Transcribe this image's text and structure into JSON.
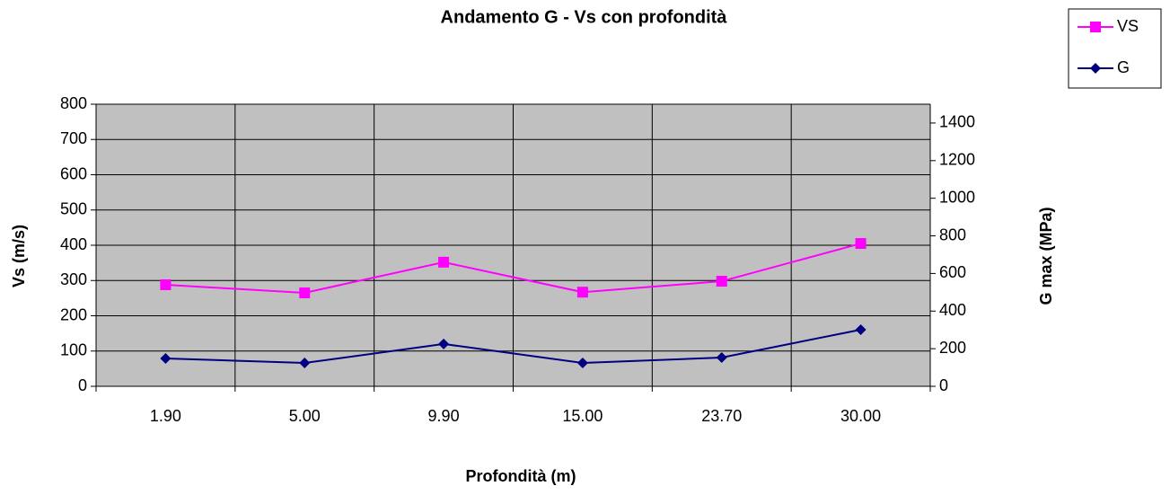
{
  "chart_data": {
    "type": "line",
    "title": "Andamento G - Vs con profondità",
    "xlabel": "Profondità (m)",
    "ylabel": "Vs (m/s)",
    "y2label": "G max (MPa)",
    "categories": [
      "1.90",
      "5.00",
      "9.90",
      "15.00",
      "23.70",
      "30.00"
    ],
    "series": [
      {
        "name": "VS",
        "color": "#ff00ff",
        "marker": "square",
        "values": [
          288,
          265,
          352,
          267,
          298,
          405
        ]
      },
      {
        "name": "G",
        "color": "#000080",
        "marker": "diamond",
        "axis": "y2",
        "values": [
          148,
          124,
          225,
          124,
          153,
          301
        ]
      }
    ],
    "ylim": [
      0,
      800
    ],
    "yticks": [
      0,
      100,
      200,
      300,
      400,
      500,
      600,
      700,
      800
    ],
    "y2lim": [
      0,
      1500
    ],
    "y2ticks": [
      0,
      200,
      400,
      600,
      800,
      1000,
      1200,
      1400
    ],
    "grid": true,
    "legend": "top-right",
    "plot_background": "#c0c0c0"
  }
}
